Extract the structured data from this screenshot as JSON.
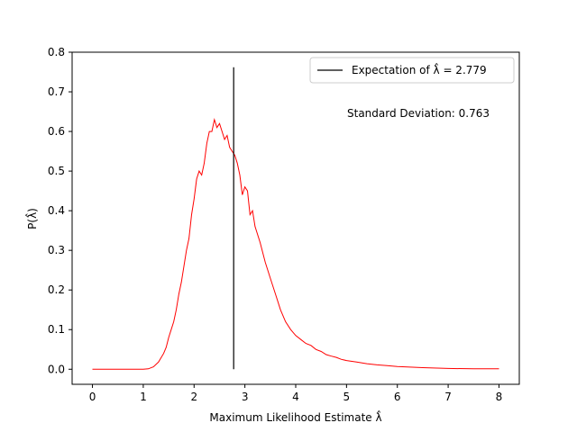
{
  "chart_data": {
    "type": "line",
    "xlabel": "Maximum Likelihood Estimate λ̂",
    "ylabel": "P(λ̂)",
    "xlim": [
      -0.4,
      8.4
    ],
    "ylim": [
      -0.038,
      0.8
    ],
    "x_ticks": [
      "0",
      "1",
      "2",
      "3",
      "4",
      "5",
      "6",
      "7",
      "8"
    ],
    "y_ticks": [
      "0.0",
      "0.1",
      "0.2",
      "0.3",
      "0.4",
      "0.5",
      "0.6",
      "0.7",
      "0.8"
    ],
    "grid": false,
    "legend": {
      "placement": "top-right",
      "entries": [
        {
          "label": "Expectation of λ̂ = 2.779",
          "color": "#000000"
        }
      ]
    },
    "annotation": "Standard Deviation: 0.763",
    "expectation_line": {
      "x": 2.779,
      "y_range": [
        0.0,
        0.762
      ],
      "color": "#000000"
    },
    "series": [
      {
        "color": "#ff0000",
        "points": [
          [
            0.0,
            0.0
          ],
          [
            0.5,
            0.0
          ],
          [
            1.0,
            0.0
          ],
          [
            1.1,
            0.001
          ],
          [
            1.2,
            0.006
          ],
          [
            1.3,
            0.018
          ],
          [
            1.4,
            0.04
          ],
          [
            1.45,
            0.055
          ],
          [
            1.5,
            0.08
          ],
          [
            1.55,
            0.1
          ],
          [
            1.6,
            0.12
          ],
          [
            1.65,
            0.15
          ],
          [
            1.7,
            0.19
          ],
          [
            1.75,
            0.22
          ],
          [
            1.8,
            0.26
          ],
          [
            1.85,
            0.3
          ],
          [
            1.9,
            0.33
          ],
          [
            1.95,
            0.39
          ],
          [
            2.0,
            0.43
          ],
          [
            2.05,
            0.48
          ],
          [
            2.1,
            0.5
          ],
          [
            2.15,
            0.49
          ],
          [
            2.2,
            0.52
          ],
          [
            2.25,
            0.57
          ],
          [
            2.3,
            0.6
          ],
          [
            2.35,
            0.6
          ],
          [
            2.4,
            0.63
          ],
          [
            2.45,
            0.61
          ],
          [
            2.5,
            0.62
          ],
          [
            2.55,
            0.6
          ],
          [
            2.6,
            0.58
          ],
          [
            2.65,
            0.59
          ],
          [
            2.7,
            0.56
          ],
          [
            2.75,
            0.55
          ],
          [
            2.8,
            0.54
          ],
          [
            2.85,
            0.52
          ],
          [
            2.9,
            0.49
          ],
          [
            2.95,
            0.44
          ],
          [
            3.0,
            0.46
          ],
          [
            3.05,
            0.45
          ],
          [
            3.1,
            0.39
          ],
          [
            3.15,
            0.4
          ],
          [
            3.2,
            0.36
          ],
          [
            3.3,
            0.32
          ],
          [
            3.4,
            0.27
          ],
          [
            3.5,
            0.23
          ],
          [
            3.6,
            0.19
          ],
          [
            3.7,
            0.15
          ],
          [
            3.8,
            0.12
          ],
          [
            3.9,
            0.1
          ],
          [
            4.0,
            0.085
          ],
          [
            4.1,
            0.075
          ],
          [
            4.2,
            0.065
          ],
          [
            4.3,
            0.06
          ],
          [
            4.4,
            0.05
          ],
          [
            4.5,
            0.045
          ],
          [
            4.6,
            0.037
          ],
          [
            4.7,
            0.033
          ],
          [
            4.8,
            0.03
          ],
          [
            4.9,
            0.025
          ],
          [
            5.0,
            0.022
          ],
          [
            5.2,
            0.018
          ],
          [
            5.4,
            0.014
          ],
          [
            5.6,
            0.011
          ],
          [
            5.8,
            0.009
          ],
          [
            6.0,
            0.007
          ],
          [
            6.5,
            0.004
          ],
          [
            7.0,
            0.002
          ],
          [
            7.5,
            0.001
          ],
          [
            8.0,
            0.001
          ]
        ]
      }
    ]
  }
}
